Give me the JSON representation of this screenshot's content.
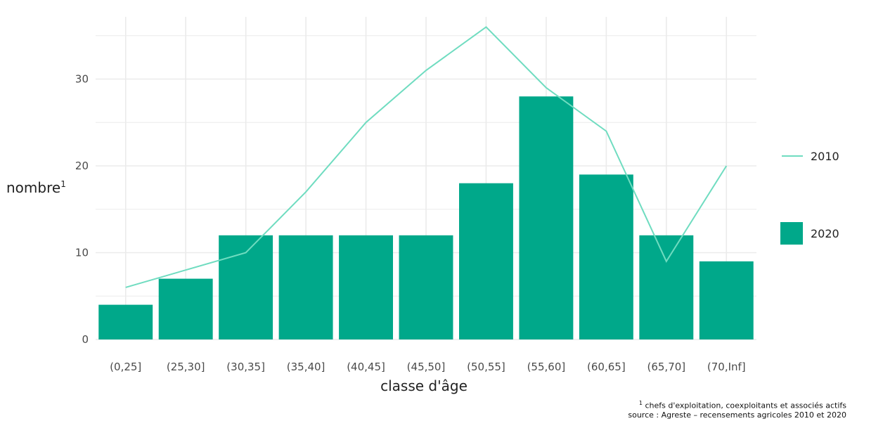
{
  "chart_data": {
    "type": "bar",
    "xlabel": "classe d'âge",
    "ylabel": "nombre",
    "ylabel_superscript": "1",
    "categories": [
      "(0,25]",
      "(25,30]",
      "(30,35]",
      "(35,40]",
      "(40,45]",
      "(45,50]",
      "(50,55]",
      "(55,60]",
      "(60,65]",
      "(65,70]",
      "(70,Inf]"
    ],
    "series": [
      {
        "name": "2020",
        "kind": "bar",
        "color": "#00a88a",
        "values": [
          4,
          7,
          12,
          12,
          12,
          12,
          18,
          28,
          19,
          12,
          9
        ]
      },
      {
        "name": "2010",
        "kind": "line",
        "color": "#6fdcc0",
        "values": [
          6,
          8,
          10,
          17,
          25,
          31,
          36,
          29,
          24,
          9,
          20
        ]
      }
    ],
    "yticks": [
      0,
      10,
      20,
      30
    ],
    "ylim": [
      0,
      38
    ],
    "grid": true,
    "legend_position": "right"
  },
  "footnote": {
    "line1_sup": "1",
    "line1": " chefs d'exploitation, coexploitants et associés actifs",
    "line2": "source : Agreste – recensements agricoles 2010 et 2020"
  }
}
